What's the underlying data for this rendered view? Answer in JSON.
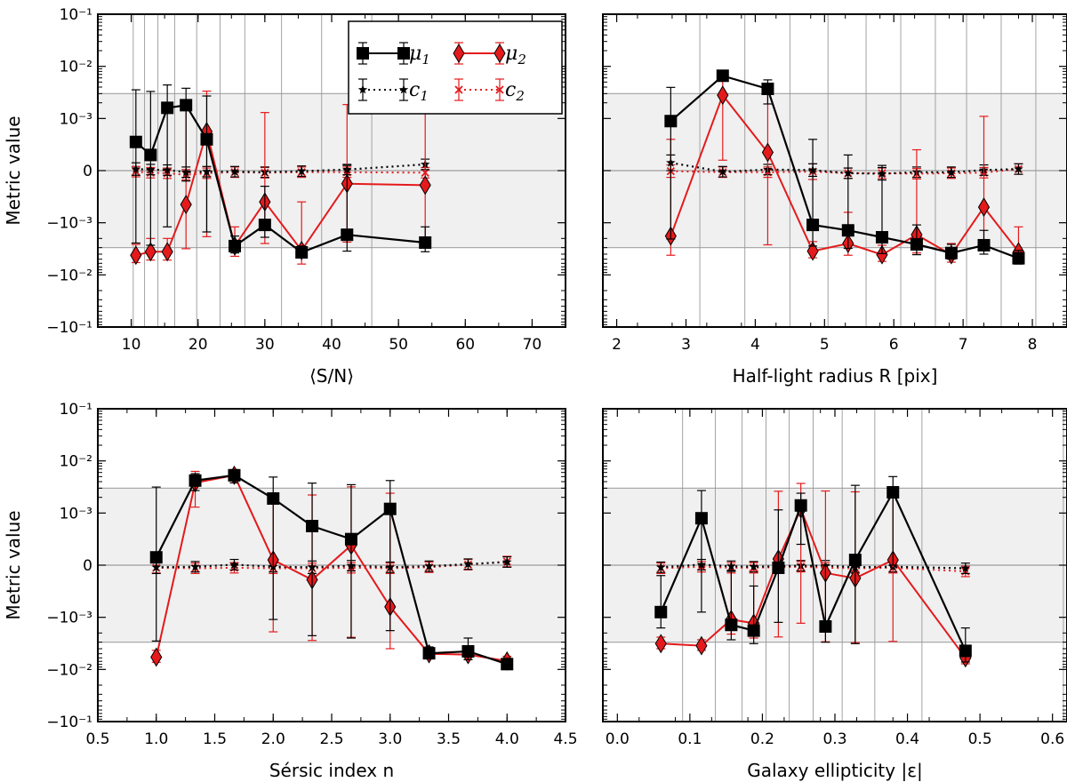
{
  "colors": {
    "mu1": "#000000",
    "mu2": "#e41a1c",
    "band": "#f0f0f0",
    "grid": "#999999"
  },
  "legend": [
    {
      "id": "mu1",
      "label": "μ1",
      "style": "solid-square-black"
    },
    {
      "id": "mu2",
      "label": "μ2",
      "style": "solid-diamond-red"
    },
    {
      "id": "c1",
      "label": "c1",
      "style": "dotted-star-black"
    },
    {
      "id": "c2",
      "label": "c2",
      "style": "dotted-x-red"
    }
  ],
  "chart_data": [
    {
      "id": "sn",
      "type": "line",
      "xlabel": "⟨S/N⟩",
      "ylabel": "Metric value",
      "xlim": [
        5,
        75
      ],
      "xticks": [
        10,
        20,
        30,
        40,
        50,
        60,
        70
      ],
      "yscale": "symlog",
      "linthresh": 0.001,
      "ylim": [
        -0.1,
        0.1
      ],
      "yticks": [
        {
          "v": 0.1,
          "t": "10⁻¹"
        },
        {
          "v": 0.01,
          "t": "10⁻²"
        },
        {
          "v": 0.001,
          "t": "10⁻³"
        },
        {
          "v": 0,
          "t": "0"
        },
        {
          "v": -0.001,
          "t": "−10⁻³"
        },
        {
          "v": -0.01,
          "t": "−10⁻²"
        },
        {
          "v": -0.1,
          "t": "−10⁻¹"
        }
      ],
      "band": [
        -0.003,
        0.003
      ],
      "vgrid": [
        10.3,
        12,
        14,
        16.5,
        19.8,
        23.3,
        27,
        32.5,
        38.5,
        46
      ],
      "series": [
        {
          "name": "μ1",
          "x": [
            10.7,
            12.9,
            15.4,
            18.2,
            21.3,
            25.5,
            30.0,
            35.5,
            42.3,
            54.0
          ],
          "y": [
            0.00055,
            0.0003,
            0.0016,
            0.0018,
            0.0006,
            -0.0028,
            -0.0011,
            -0.0037,
            -0.0017,
            -0.0024
          ],
          "err": [
            0.003,
            0.003,
            0.0028,
            0.002,
            0.0021,
            0.001,
            0.0008,
            0.0009,
            0.0018,
            0.0012
          ]
        },
        {
          "name": "μ2",
          "x": [
            10.7,
            12.9,
            15.4,
            18.2,
            21.3,
            25.5,
            30.0,
            35.5,
            42.3,
            54.0
          ],
          "y": [
            -0.0042,
            -0.0036,
            -0.0036,
            -0.00065,
            0.00075,
            -0.0028,
            -0.0006,
            -0.0034,
            -0.00025,
            -0.00028
          ],
          "err": [
            0.0016,
            0.0016,
            0.0016,
            0.0025,
            0.0026,
            0.0016,
            0.0019,
            0.0028,
            0.0021,
            0.0019
          ]
        },
        {
          "name": "c1",
          "x": [
            10.7,
            12.9,
            15.4,
            18.2,
            21.3,
            25.5,
            30.0,
            35.5,
            42.3,
            54.0
          ],
          "y": [
            3e-05,
            2e-05,
            1e-05,
            -3e-05,
            -2e-05,
            -2e-05,
            -3e-05,
            -1e-05,
            2e-05,
            0.00012
          ],
          "err": [
            0.00012,
            0.0001,
            0.0001,
            0.0001,
            0.0001,
            0.0001,
            0.0001,
            0.0001,
            0.0001,
            0.0001
          ]
        },
        {
          "name": "c2",
          "x": [
            10.7,
            12.9,
            15.4,
            18.2,
            21.3,
            25.5,
            30.0,
            35.5,
            42.3,
            54.0
          ],
          "y": [
            -2e-05,
            -4e-05,
            -5e-05,
            -8e-05,
            -5e-05,
            -3e-05,
            -4e-05,
            -3e-05,
            -3e-05,
            -4e-05
          ],
          "err": [
            0.0001,
            0.0001,
            0.0001,
            0.0001,
            0.0001,
            0.0001,
            0.0001,
            0.0001,
            0.0001,
            0.0001
          ]
        }
      ]
    },
    {
      "id": "radius",
      "type": "line",
      "xlabel": "Half-light radius R [pix]",
      "ylabel": "",
      "xlim": [
        1.8,
        8.5
      ],
      "xticks": [
        2,
        3,
        4,
        5,
        6,
        7,
        8
      ],
      "yscale": "symlog",
      "linthresh": 0.001,
      "ylim": [
        -0.1,
        0.1
      ],
      "yticks": [],
      "band": [
        -0.003,
        0.003
      ],
      "vgrid": [
        3.2,
        3.85,
        4.5,
        5.05,
        5.6,
        6.1,
        6.6,
        7.05,
        7.55,
        8.05
      ],
      "series": [
        {
          "name": "μ1",
          "x": [
            2.78,
            3.53,
            4.18,
            4.83,
            5.34,
            5.83,
            6.33,
            6.83,
            7.3,
            7.8
          ],
          "y": [
            0.00095,
            0.0066,
            0.0037,
            -0.0011,
            -0.0014,
            -0.0019,
            -0.0026,
            -0.0038,
            -0.0027,
            -0.0048
          ],
          "err": [
            0.003,
            0.0013,
            0.0018,
            0.0017,
            0.0017,
            0.002,
            0.0015,
            0.0012,
            0.0013,
            0.0014
          ]
        },
        {
          "name": "μ2",
          "x": [
            2.78,
            3.53,
            4.18,
            4.83,
            5.34,
            5.83,
            6.33,
            6.83,
            7.3,
            7.8
          ],
          "y": [
            -0.0018,
            0.0028,
            0.00035,
            -0.0035,
            -0.0025,
            -0.0041,
            -0.0017,
            -0.0041,
            -0.0007,
            -0.0036
          ],
          "err": [
            0.0024,
            0.0026,
            0.003,
            0.0012,
            0.0017,
            0.0014,
            0.0021,
            0.0016,
            0.0018,
            0.0024
          ]
        },
        {
          "name": "c1",
          "x": [
            2.78,
            3.53,
            4.18,
            4.83,
            5.34,
            5.83,
            6.33,
            6.83,
            7.3,
            7.8
          ],
          "y": [
            0.00015,
            -2e-05,
            2e-05,
            1e-05,
            -5e-05,
            -6e-05,
            -3e-05,
            -3e-05,
            1e-05,
            3e-05
          ],
          "err": [
            0.00015,
            0.0001,
            0.0001,
            0.00012,
            0.0001,
            0.00012,
            0.0001,
            0.0001,
            0.0001,
            0.0001
          ]
        },
        {
          "name": "c2",
          "x": [
            2.78,
            3.53,
            4.18,
            4.83,
            5.34,
            5.83,
            6.33,
            6.83,
            7.3,
            7.8
          ],
          "y": [
            -1e-05,
            -3e-05,
            -3e-05,
            -2e-05,
            -5e-05,
            -5e-05,
            -6e-05,
            -5e-05,
            -4e-05,
            3e-05
          ],
          "err": [
            0.00012,
            0.0001,
            0.0001,
            0.00015,
            0.0001,
            0.0001,
            0.0001,
            0.0001,
            0.0001,
            0.0001
          ]
        }
      ]
    },
    {
      "id": "sersic",
      "type": "line",
      "xlabel": "Sérsic index n",
      "ylabel": "Metric value",
      "xlim": [
        0.5,
        4.5
      ],
      "xticks": [
        0.5,
        1.0,
        1.5,
        2.0,
        2.5,
        3.0,
        3.5,
        4.0,
        4.5
      ],
      "yscale": "symlog",
      "linthresh": 0.001,
      "ylim": [
        -0.1,
        0.1
      ],
      "yticks": [
        {
          "v": 0.1,
          "t": "10⁻¹"
        },
        {
          "v": 0.01,
          "t": "10⁻²"
        },
        {
          "v": 0.001,
          "t": "10⁻³"
        },
        {
          "v": 0,
          "t": "0"
        },
        {
          "v": -0.001,
          "t": "−10⁻³"
        },
        {
          "v": -0.01,
          "t": "−10⁻²"
        },
        {
          "v": -0.1,
          "t": "−10⁻¹"
        }
      ],
      "band": [
        -0.003,
        0.003
      ],
      "vgrid": [],
      "series": [
        {
          "name": "μ1",
          "x": [
            1.0,
            1.333,
            1.667,
            2.0,
            2.333,
            2.667,
            3.0,
            3.333,
            3.667,
            4.0
          ],
          "y": [
            0.00015,
            0.0042,
            0.0053,
            0.0019,
            0.00075,
            0.0005,
            0.0012,
            -0.0049,
            -0.0045,
            -0.0079
          ],
          "err": [
            0.003,
            0.0015,
            0.0015,
            0.003,
            0.003,
            0.003,
            0.003,
            0.0012,
            0.002,
            0.001
          ]
        },
        {
          "name": "μ2",
          "x": [
            1.0,
            1.333,
            1.667,
            2.0,
            2.333,
            2.667,
            3.0,
            3.333,
            3.667,
            4.0
          ],
          "y": [
            -0.0058,
            0.0038,
            0.0053,
            0.0001,
            -0.00028,
            0.00038,
            -0.0008,
            -0.005,
            -0.0052,
            -0.0069
          ],
          "err": [
            0.0015,
            0.0025,
            0.0015,
            0.002,
            0.0025,
            0.0028,
            0.0032,
            0.0011,
            0.0013,
            0.0013
          ]
        },
        {
          "name": "c1",
          "x": [
            1.0,
            1.333,
            1.667,
            2.0,
            2.333,
            2.667,
            3.0,
            3.333,
            3.667,
            4.0
          ],
          "y": [
            -4e-05,
            -3e-05,
            1e-05,
            -3e-05,
            -4e-05,
            -1e-05,
            -4e-05,
            -2e-05,
            2e-05,
            6e-05
          ],
          "err": [
            0.00012,
            0.0001,
            0.0001,
            0.0001,
            0.00012,
            0.0001,
            0.0001,
            0.0001,
            0.0001,
            0.0001
          ]
        },
        {
          "name": "c2",
          "x": [
            1.0,
            1.333,
            1.667,
            2.0,
            2.333,
            2.667,
            3.0,
            3.333,
            3.667,
            4.0
          ],
          "y": [
            -5e-05,
            -6e-05,
            -5e-05,
            -6e-05,
            -6e-05,
            -5e-05,
            -6e-05,
            -4e-05,
            1e-05,
            7e-05
          ],
          "err": [
            0.0001,
            0.0001,
            0.0001,
            0.0001,
            0.0001,
            0.0001,
            0.0001,
            0.0001,
            0.0001,
            0.0001
          ]
        }
      ]
    },
    {
      "id": "ellipticity",
      "type": "line",
      "xlabel": "Galaxy ellipticity |ε|",
      "ylabel": "",
      "xlim": [
        -0.02,
        0.62
      ],
      "xticks": [
        0.0,
        0.1,
        0.2,
        0.3,
        0.4,
        0.5,
        0.6
      ],
      "yscale": "symlog",
      "linthresh": 0.001,
      "ylim": [
        -0.1,
        0.1
      ],
      "yticks": [],
      "band": [
        -0.003,
        0.003
      ],
      "vgrid": [
        0.09,
        0.135,
        0.172,
        0.205,
        0.237,
        0.27,
        0.31,
        0.355,
        0.42,
        0.615
      ],
      "series": [
        {
          "name": "μ1",
          "x": [
            0.06,
            0.116,
            0.157,
            0.188,
            0.222,
            0.253,
            0.287,
            0.328,
            0.38,
            0.48
          ],
          "y": [
            -0.0009,
            0.0009,
            -0.0014,
            -0.0018,
            -5e-05,
            0.0014,
            -0.0015,
            0.0001,
            0.0025,
            -0.0044
          ],
          "err": [
            0.0007,
            0.0018,
            0.0013,
            0.0014,
            0.0012,
            0.001,
            0.0015,
            0.0033,
            0.0025,
            0.0028
          ]
        },
        {
          "name": "μ2",
          "x": [
            0.06,
            0.116,
            0.157,
            0.188,
            0.222,
            0.253,
            0.287,
            0.328,
            0.38,
            0.48
          ],
          "y": [
            -0.0032,
            -0.0035,
            -0.0011,
            -0.0013,
            0.00012,
            0.0012,
            -0.00015,
            -0.00025,
            0.0001,
            -0.006
          ],
          "err": [
            0.0008,
            0.0008,
            0.001,
            0.0012,
            0.0025,
            0.0025,
            0.0028,
            0.0028,
            0.003,
            0.0018
          ]
        },
        {
          "name": "c1",
          "x": [
            0.06,
            0.116,
            0.157,
            0.188,
            0.222,
            0.253,
            0.287,
            0.328,
            0.38,
            0.48
          ],
          "y": [
            -4e-05,
            1e-05,
            -2e-05,
            -3e-05,
            -2e-05,
            -1e-05,
            -1e-05,
            -4e-05,
            -3e-05,
            -6e-05
          ],
          "err": [
            0.0001,
            0.0001,
            0.0001,
            0.0001,
            0.0001,
            0.0001,
            0.0001,
            0.0001,
            0.0001,
            0.0001
          ]
        },
        {
          "name": "c2",
          "x": [
            0.06,
            0.116,
            0.157,
            0.188,
            0.222,
            0.253,
            0.287,
            0.328,
            0.38,
            0.48
          ],
          "y": [
            -6e-05,
            -3e-05,
            -5e-05,
            -5e-05,
            -4e-05,
            -3e-05,
            -5e-05,
            -6e-05,
            -5e-05,
            -0.00012
          ],
          "err": [
            0.0001,
            0.0001,
            0.0001,
            0.0001,
            0.0001,
            0.0001,
            0.0001,
            0.0001,
            0.0001,
            0.0001
          ]
        }
      ]
    }
  ]
}
